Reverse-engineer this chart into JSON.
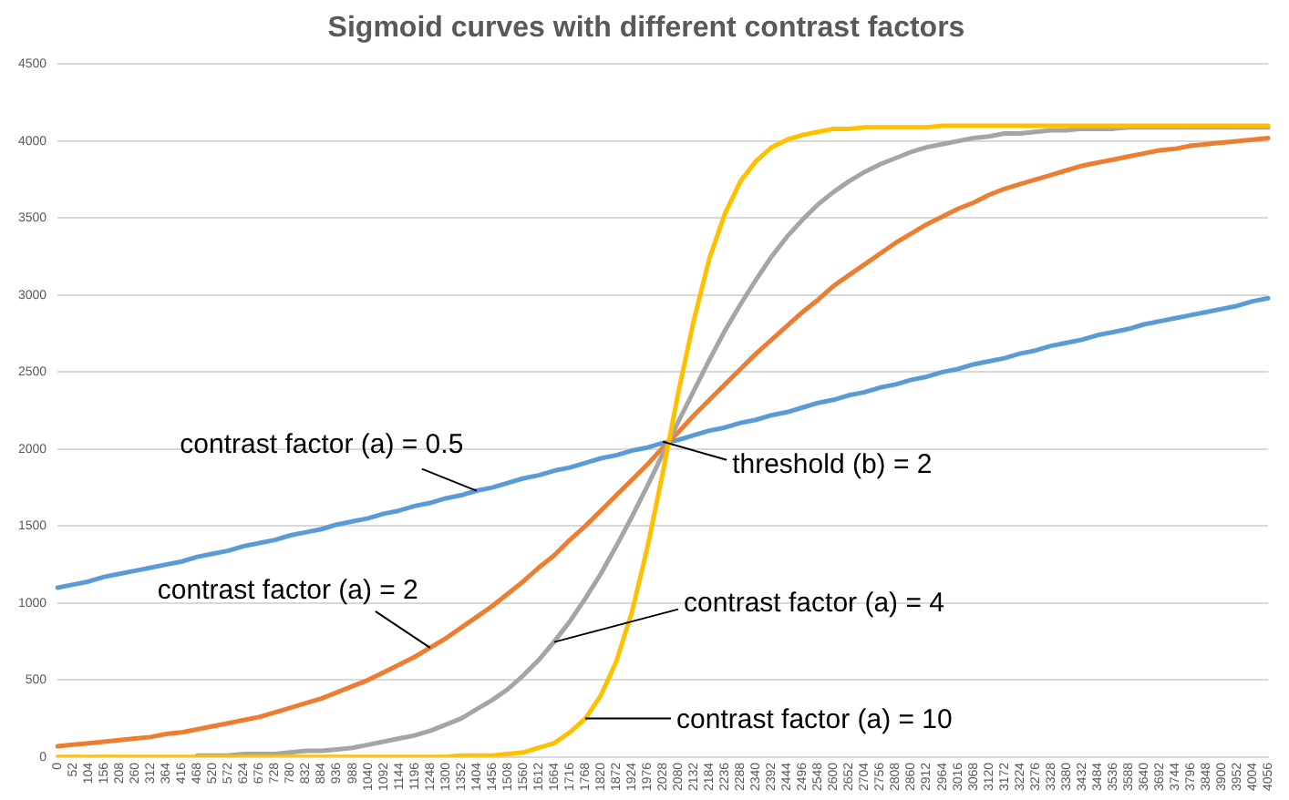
{
  "chart_data": {
    "type": "line",
    "title": "Sigmoid curves with different contrast factors",
    "categories": [
      "0",
      "52",
      "104",
      "156",
      "208",
      "260",
      "312",
      "364",
      "416",
      "468",
      "520",
      "572",
      "624",
      "676",
      "728",
      "780",
      "832",
      "884",
      "936",
      "988",
      "1040",
      "1092",
      "1144",
      "1196",
      "1248",
      "1300",
      "1352",
      "1404",
      "1456",
      "1508",
      "1560",
      "1612",
      "1664",
      "1716",
      "1768",
      "1820",
      "1872",
      "1924",
      "1976",
      "2028",
      "2080",
      "2132",
      "2184",
      "2236",
      "2288",
      "2340",
      "2392",
      "2444",
      "2496",
      "2548",
      "2600",
      "2652",
      "2704",
      "2756",
      "2808",
      "2860",
      "2912",
      "2964",
      "3016",
      "3068",
      "3120",
      "3172",
      "3224",
      "3276",
      "3328",
      "3380",
      "3432",
      "3484",
      "3536",
      "3588",
      "3640",
      "3692",
      "3744",
      "3796",
      "3848",
      "3900",
      "3952",
      "4004",
      "4056"
    ],
    "series": [
      {
        "color": "#5b9bd5",
        "values": [
          1100,
          1120,
          1140,
          1170,
          1190,
          1210,
          1230,
          1250,
          1270,
          1300,
          1320,
          1340,
          1370,
          1390,
          1410,
          1440,
          1460,
          1480,
          1510,
          1530,
          1550,
          1580,
          1600,
          1630,
          1650,
          1680,
          1700,
          1730,
          1750,
          1780,
          1810,
          1830,
          1860,
          1880,
          1910,
          1940,
          1960,
          1990,
          2010,
          2040,
          2060,
          2090,
          2120,
          2140,
          2170,
          2190,
          2220,
          2240,
          2270,
          2300,
          2320,
          2350,
          2370,
          2400,
          2420,
          2450,
          2470,
          2500,
          2520,
          2550,
          2570,
          2590,
          2620,
          2640,
          2670,
          2690,
          2710,
          2740,
          2760,
          2780,
          2810,
          2830,
          2850,
          2870,
          2890,
          2910,
          2930,
          2960,
          2980
        ]
      },
      {
        "color": "#ed7d31",
        "values": [
          70,
          80,
          90,
          100,
          110,
          120,
          130,
          150,
          160,
          180,
          200,
          220,
          240,
          260,
          290,
          320,
          350,
          380,
          420,
          460,
          500,
          550,
          600,
          650,
          710,
          770,
          840,
          910,
          980,
          1060,
          1140,
          1230,
          1310,
          1410,
          1500,
          1600,
          1700,
          1800,
          1900,
          2010,
          2110,
          2220,
          2320,
          2420,
          2520,
          2620,
          2710,
          2800,
          2890,
          2970,
          3060,
          3130,
          3200,
          3270,
          3340,
          3400,
          3460,
          3510,
          3560,
          3600,
          3650,
          3690,
          3720,
          3750,
          3780,
          3810,
          3840,
          3860,
          3880,
          3900,
          3920,
          3940,
          3950,
          3970,
          3980,
          3990,
          4000,
          4010,
          4020
        ]
      },
      {
        "color": "#a5a5a5",
        "values": [
          null,
          null,
          null,
          null,
          null,
          null,
          null,
          null,
          null,
          10,
          10,
          10,
          20,
          20,
          20,
          30,
          40,
          40,
          50,
          60,
          80,
          100,
          120,
          140,
          170,
          210,
          250,
          310,
          370,
          440,
          530,
          630,
          750,
          880,
          1030,
          1190,
          1370,
          1560,
          1760,
          1970,
          2180,
          2380,
          2580,
          2770,
          2940,
          3100,
          3250,
          3380,
          3490,
          3590,
          3670,
          3740,
          3800,
          3850,
          3890,
          3930,
          3960,
          3980,
          4000,
          4020,
          4030,
          4050,
          4050,
          4060,
          4070,
          4070,
          4080,
          4080,
          4080,
          4090,
          4090,
          4090,
          4090,
          4090,
          4090,
          4090,
          4090,
          4090,
          4090
        ]
      },
      {
        "color": "#ffc000",
        "values": [
          0,
          0,
          0,
          0,
          0,
          0,
          0,
          0,
          0,
          0,
          0,
          0,
          0,
          0,
          0,
          0,
          0,
          0,
          0,
          0,
          0,
          0,
          0,
          0,
          0,
          0,
          10,
          10,
          10,
          20,
          30,
          60,
          90,
          160,
          250,
          400,
          620,
          940,
          1360,
          1850,
          2370,
          2840,
          3240,
          3530,
          3740,
          3870,
          3960,
          4010,
          4040,
          4060,
          4080,
          4080,
          4090,
          4090,
          4090,
          4090,
          4090,
          4100,
          4100,
          4100,
          4100,
          4100,
          4100,
          4100,
          4100,
          4100,
          4100,
          4100,
          4100,
          4100,
          4100,
          4100,
          4100,
          4100,
          4100,
          4100,
          4100,
          4100,
          4100
        ]
      }
    ],
    "ylim": [
      0,
      4500
    ],
    "yticks": [
      0,
      500,
      1000,
      1500,
      2000,
      2500,
      3000,
      3500,
      4000,
      4500
    ],
    "grid": "y",
    "legend": false,
    "marker": "none",
    "line_style": "solid",
    "annotations": [
      {
        "text": "contrast factor (a) = 0.5",
        "x": "1404",
        "y": 1729
      },
      {
        "text": "contrast factor (a) = 2",
        "x": "1248",
        "y": 710
      },
      {
        "text": "contrast factor (a) = 4",
        "x": "1664",
        "y": 747
      },
      {
        "text": "contrast factor (a) = 10",
        "x": "1768",
        "y": 251
      },
      {
        "text": "threshold (b) = 2",
        "x": "2028",
        "y": 2048
      }
    ]
  }
}
